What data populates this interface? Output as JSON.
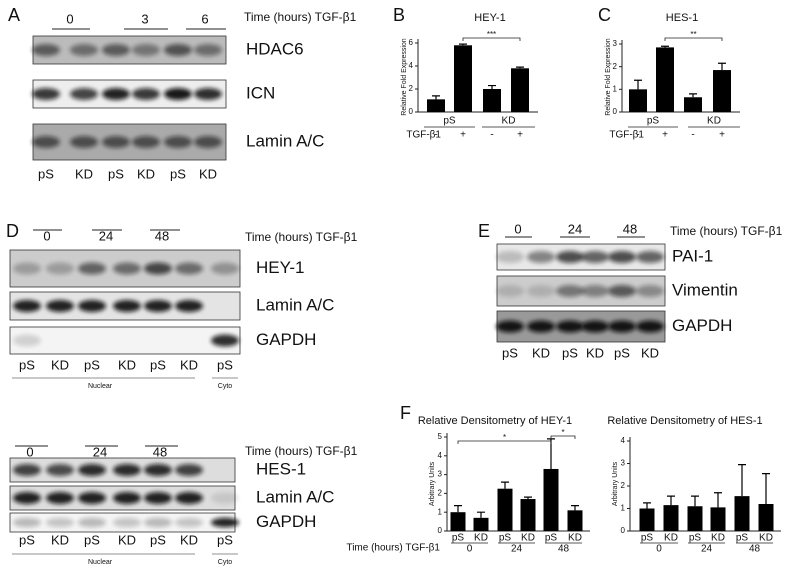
{
  "blots": [
    {
      "panel_label": "A",
      "time_label": "Time (hours) TGF-β1",
      "times": [
        "0",
        "3",
        "6"
      ],
      "bands": [
        "HDAC6",
        "ICN",
        "Lamin A/C"
      ],
      "lanes": [
        "pS",
        "KD",
        "pS",
        "KD",
        "pS",
        "KD"
      ]
    },
    {
      "panel_label": "D",
      "time_label": "Time (hours) TGF-β1",
      "times": [
        "0",
        "24",
        "48"
      ],
      "bands": [
        "HEY-1",
        "Lamin A/C",
        "GAPDH"
      ],
      "lanes": [
        "pS",
        "KD",
        "pS",
        "KD",
        "pS",
        "KD",
        "pS"
      ],
      "fractions": [
        "Nuclear",
        "Cyto"
      ]
    },
    {
      "time_label": "Time (hours) TGF-β1",
      "times": [
        "0",
        "24",
        "48"
      ],
      "bands": [
        "HES-1",
        "Lamin A/C",
        "GAPDH"
      ],
      "lanes": [
        "pS",
        "KD",
        "pS",
        "KD",
        "pS",
        "KD",
        "pS"
      ],
      "fractions": [
        "Nuclear",
        "Cyto"
      ]
    },
    {
      "panel_label": "E",
      "time_label": "Time (hours) TGF-β1",
      "times": [
        "0",
        "24",
        "48"
      ],
      "bands": [
        "PAI-1",
        "Vimentin",
        "GAPDH"
      ],
      "lanes": [
        "pS",
        "KD",
        "pS",
        "KD",
        "pS",
        "KD"
      ]
    }
  ],
  "chart_data": [
    {
      "type": "bar",
      "panel_label": "B",
      "title": "HEY-1",
      "y_label": "Relative Fold Expression",
      "category_label": "TGF-β1",
      "categories": [
        "-",
        "+",
        "-",
        "+"
      ],
      "groups": [
        "pS",
        "KD"
      ],
      "values": [
        1.1,
        5.8,
        2.0,
        3.8
      ],
      "errors": [
        0.3,
        0.1,
        0.3,
        0.1
      ],
      "color": "#000000",
      "ylim": [
        0,
        6
      ],
      "yticks": [
        0,
        2,
        4,
        6
      ],
      "annotations": [
        "***"
      ]
    },
    {
      "type": "bar",
      "panel_label": "C",
      "title": "HES-1",
      "y_label": "Relative Fold Expression",
      "category_label": "TGF-β1",
      "categories": [
        "-",
        "+",
        "-",
        "+"
      ],
      "groups": [
        "pS",
        "KD"
      ],
      "values": [
        1.0,
        2.85,
        0.65,
        1.85
      ],
      "errors": [
        0.4,
        0.05,
        0.15,
        0.3
      ],
      "color": "#000000",
      "ylim": [
        0,
        3
      ],
      "yticks": [
        0,
        1,
        2,
        3
      ],
      "annotations": [
        "**"
      ]
    },
    {
      "type": "bar",
      "panel_label": "F",
      "title": "Relative Densitometry of HEY-1",
      "y_label": "Arbitrary Units",
      "category_label": "Time (hours) TGF-β1",
      "categories": [
        "pS",
        "KD",
        "pS",
        "KD",
        "pS",
        "KD"
      ],
      "groups": [
        "0",
        "24",
        "48"
      ],
      "values": [
        1.0,
        0.7,
        2.25,
        1.7,
        3.3,
        1.1
      ],
      "errors": [
        0.35,
        0.3,
        0.35,
        0.1,
        1.6,
        0.25
      ],
      "color": "#000000",
      "ylim": [
        0,
        5
      ],
      "yticks": [
        0,
        1,
        2,
        3,
        4,
        5
      ],
      "annotations": [
        "*",
        "*"
      ]
    },
    {
      "type": "bar",
      "title": "Relative Densitometry of HES-1",
      "y_label": "Arbitrary Units",
      "categories": [
        "pS",
        "KD",
        "pS",
        "KD",
        "pS",
        "KD"
      ],
      "groups": [
        "0",
        "24",
        "48"
      ],
      "values": [
        1.0,
        1.15,
        1.1,
        1.05,
        1.55,
        1.2
      ],
      "errors": [
        0.25,
        0.4,
        0.45,
        0.65,
        1.4,
        1.35
      ],
      "color": "#000000",
      "ylim": [
        0,
        4
      ],
      "yticks": [
        0,
        1,
        2,
        3,
        4
      ]
    }
  ]
}
